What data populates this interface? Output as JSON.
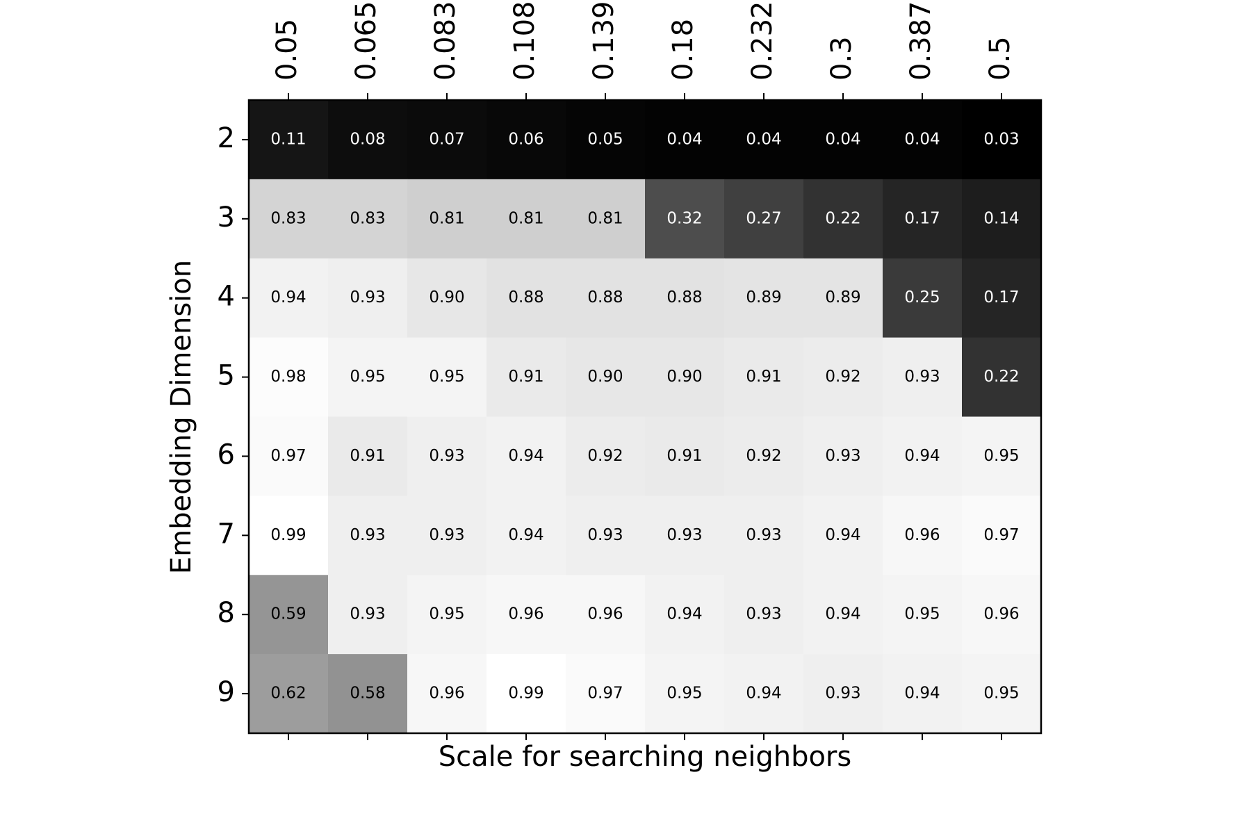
{
  "chart_data": {
    "type": "heatmap",
    "x_label": "Scale for searching neighbors",
    "y_label": "Embedding Dimension",
    "x_categories": [
      "0.05",
      "0.065",
      "0.083",
      "0.108",
      "0.139",
      "0.18",
      "0.232",
      "0.3",
      "0.387",
      "0.5"
    ],
    "y_categories": [
      "2",
      "3",
      "4",
      "5",
      "6",
      "7",
      "8",
      "9"
    ],
    "colormap": "gray",
    "values": [
      [
        0.11,
        0.08,
        0.07,
        0.06,
        0.05,
        0.04,
        0.04,
        0.04,
        0.04,
        0.03
      ],
      [
        0.83,
        0.83,
        0.81,
        0.81,
        0.81,
        0.32,
        0.27,
        0.22,
        0.17,
        0.14
      ],
      [
        0.94,
        0.93,
        0.9,
        0.88,
        0.88,
        0.88,
        0.89,
        0.89,
        0.25,
        0.17
      ],
      [
        0.98,
        0.95,
        0.95,
        0.91,
        0.9,
        0.9,
        0.91,
        0.92,
        0.93,
        0.22
      ],
      [
        0.97,
        0.91,
        0.93,
        0.94,
        0.92,
        0.91,
        0.92,
        0.93,
        0.94,
        0.95
      ],
      [
        0.99,
        0.93,
        0.93,
        0.94,
        0.93,
        0.93,
        0.93,
        0.94,
        0.96,
        0.97
      ],
      [
        0.59,
        0.93,
        0.95,
        0.96,
        0.96,
        0.94,
        0.93,
        0.94,
        0.95,
        0.96
      ],
      [
        0.62,
        0.58,
        0.96,
        0.99,
        0.97,
        0.95,
        0.94,
        0.93,
        0.94,
        0.95
      ]
    ],
    "value_labels": [
      [
        "0.11",
        "0.08",
        "0.07",
        "0.06",
        "0.05",
        "0.04",
        "0.04",
        "0.04",
        "0.04",
        "0.03"
      ],
      [
        "0.83",
        "0.83",
        "0.81",
        "0.81",
        "0.81",
        "0.32",
        "0.27",
        "0.22",
        "0.17",
        "0.14"
      ],
      [
        "0.94",
        "0.93",
        "0.90",
        "0.88",
        "0.88",
        "0.88",
        "0.89",
        "0.89",
        "0.25",
        "0.17"
      ],
      [
        "0.98",
        "0.95",
        "0.95",
        "0.91",
        "0.90",
        "0.90",
        "0.91",
        "0.92",
        "0.93",
        "0.22"
      ],
      [
        "0.97",
        "0.91",
        "0.93",
        "0.94",
        "0.92",
        "0.91",
        "0.92",
        "0.93",
        "0.94",
        "0.95"
      ],
      [
        "0.99",
        "0.93",
        "0.93",
        "0.94",
        "0.93",
        "0.93",
        "0.93",
        "0.94",
        "0.96",
        "0.97"
      ],
      [
        "0.59",
        "0.93",
        "0.95",
        "0.96",
        "0.96",
        "0.94",
        "0.93",
        "0.94",
        "0.95",
        "0.96"
      ],
      [
        "0.62",
        "0.58",
        "0.96",
        "0.99",
        "0.97",
        "0.95",
        "0.94",
        "0.93",
        "0.94",
        "0.95"
      ]
    ]
  }
}
